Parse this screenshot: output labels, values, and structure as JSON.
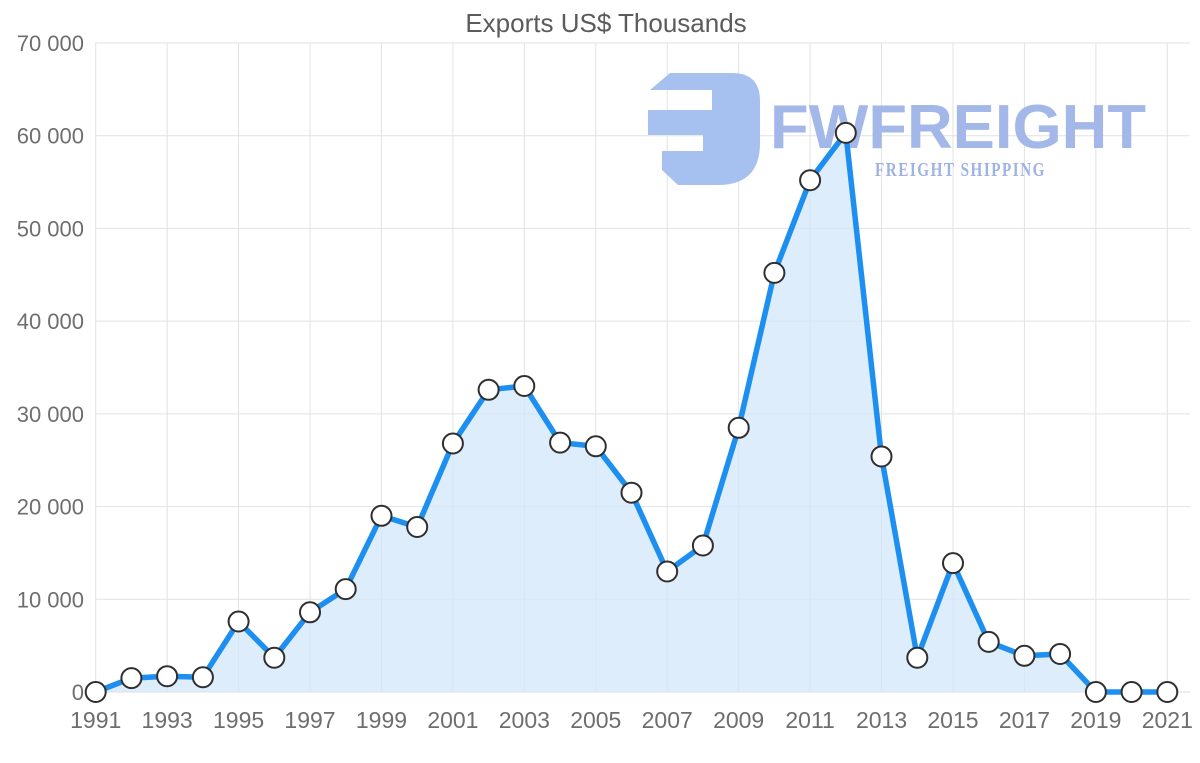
{
  "title": "Exports US$ Thousands",
  "watermark": {
    "brand": "FWFREIGHT",
    "tagline": "FREIGHT SHIPPING"
  },
  "colors": {
    "line": "#1d8ff0",
    "area_fill": "#d3e7fa",
    "area_opacity": 0.75,
    "marker_fill": "#ffffff",
    "marker_stroke": "#2f2f2f",
    "gridline": "#e2e2e2",
    "axis_line": "#dcdcdc",
    "title_text": "#5b5b5b",
    "tick_text": "#6e6e6e",
    "watermark_glyph": "#a6c1f0",
    "watermark_brand": "#a3b7e9",
    "watermark_tagline": "#9eb2e4"
  },
  "chart_data": {
    "type": "area",
    "title": "Exports US$ Thousands",
    "xlabel": "",
    "ylabel": "",
    "x": [
      1991,
      1992,
      1993,
      1994,
      1995,
      1996,
      1997,
      1998,
      1999,
      2000,
      2001,
      2002,
      2003,
      2004,
      2005,
      2006,
      2007,
      2008,
      2009,
      2010,
      2011,
      2012,
      2013,
      2014,
      2015,
      2016,
      2017,
      2018,
      2019,
      2020,
      2021
    ],
    "values": [
      0,
      1500,
      1700,
      1600,
      7600,
      3700,
      8600,
      11100,
      19000,
      17800,
      26800,
      32600,
      33000,
      26900,
      26500,
      21500,
      13000,
      15800,
      28500,
      45200,
      55200,
      60300,
      25400,
      3700,
      13900,
      5400,
      3900,
      4100,
      0,
      0,
      0
    ],
    "series_name": "Exports US$ Thousands",
    "ylim": [
      0,
      70000
    ],
    "ytick_interval": 10000,
    "ytick_labels": [
      "0",
      "10 000",
      "20 000",
      "30 000",
      "40 000",
      "50 000",
      "60 000",
      "70 000"
    ],
    "xtick_interval": 2,
    "xtick_labels": [
      "1991",
      "1993",
      "1995",
      "1997",
      "1999",
      "2001",
      "2003",
      "2005",
      "2007",
      "2009",
      "2011",
      "2013",
      "2015",
      "2017",
      "2019",
      "2021"
    ],
    "grid": true,
    "legend": false,
    "marker": "circle"
  }
}
